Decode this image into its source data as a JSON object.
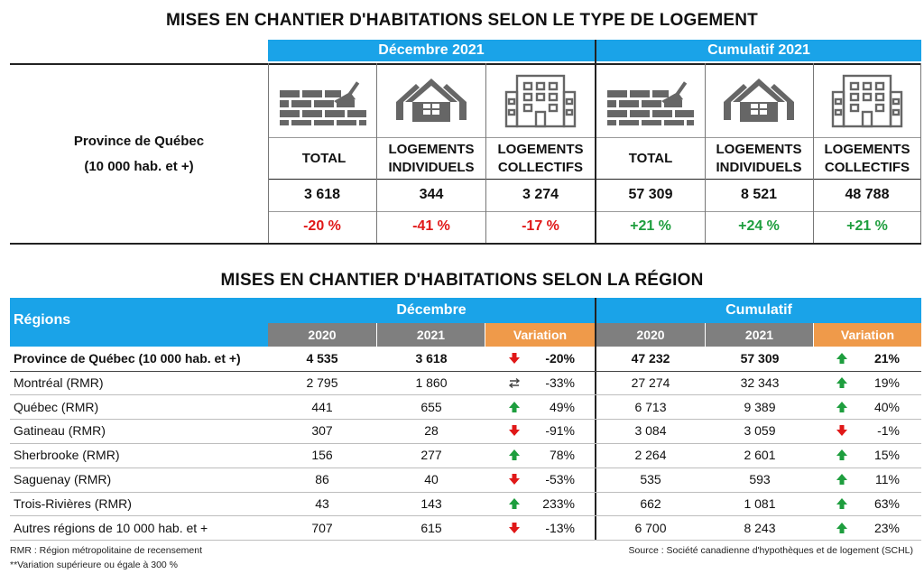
{
  "title_type": "MISES EN CHANTIER D'HABITATIONS SELON LE TYPE DE LOGEMENT",
  "title_region": "MISES EN CHANTIER D'HABITATIONS SELON LA RÉGION",
  "type_table": {
    "province_line1": "Province de Québec",
    "province_line2": "(10 000 hab. et +)",
    "period1": "Décembre 2021",
    "period2": "Cumulatif 2021",
    "headers": {
      "total": "TOTAL",
      "indiv_1": "LOGEMENTS",
      "indiv_2": "INDIVIDUELS",
      "coll_1": "LOGEMENTS",
      "coll_2": "COLLECTIFS"
    },
    "icons": [
      "brick-wall-trowel-icon",
      "house-icon",
      "apartment-building-icon",
      "brick-wall-trowel-icon",
      "house-icon",
      "apartment-building-icon"
    ],
    "values": [
      "3 618",
      "344",
      "3 274",
      "57 309",
      "8 521",
      "48 788"
    ],
    "variations": [
      "-20 %",
      "-41 %",
      "-17 %",
      "+21 %",
      "+24 %",
      "+21 %"
    ]
  },
  "region_table": {
    "col_regions": "Régions",
    "group1": "Décembre",
    "group2": "Cumulatif",
    "sub": [
      "2020",
      "2021",
      "Variation",
      "2020",
      "2021",
      "Variation"
    ],
    "rows": [
      {
        "name": "Province de Québec (10 000 hab. et +)",
        "d2020": "4 535",
        "d2021": "3 618",
        "dvar": "-20%",
        "darrow": "down",
        "c2020": "47 232",
        "c2021": "57 309",
        "cvar": "21%",
        "carrow": "up"
      },
      {
        "name": "Montréal (RMR)",
        "d2020": "2 795",
        "d2021": "1 860",
        "dvar": "-33%",
        "darrow": "swap",
        "c2020": "27 274",
        "c2021": "32 343",
        "cvar": "19%",
        "carrow": "up"
      },
      {
        "name": "Québec (RMR)",
        "d2020": "441",
        "d2021": "655",
        "dvar": "49%",
        "darrow": "up",
        "c2020": "6 713",
        "c2021": "9 389",
        "cvar": "40%",
        "carrow": "up"
      },
      {
        "name": "Gatineau (RMR)",
        "d2020": "307",
        "d2021": "28",
        "dvar": "-91%",
        "darrow": "down",
        "c2020": "3 084",
        "c2021": "3 059",
        "cvar": "-1%",
        "carrow": "down"
      },
      {
        "name": "Sherbrooke (RMR)",
        "d2020": "156",
        "d2021": "277",
        "dvar": "78%",
        "darrow": "up",
        "c2020": "2 264",
        "c2021": "2 601",
        "cvar": "15%",
        "carrow": "up"
      },
      {
        "name": "Saguenay (RMR)",
        "d2020": "86",
        "d2021": "40",
        "dvar": "-53%",
        "darrow": "down",
        "c2020": "535",
        "c2021": "593",
        "cvar": "11%",
        "carrow": "up"
      },
      {
        "name": "Trois-Rivières (RMR)",
        "d2020": "43",
        "d2021": "143",
        "dvar": "233%",
        "darrow": "up",
        "c2020": "662",
        "c2021": "1 081",
        "cvar": "63%",
        "carrow": "up"
      },
      {
        "name": "Autres régions de 10 000  hab. et +",
        "d2020": "707",
        "d2021": "615",
        "dvar": "-13%",
        "darrow": "down",
        "c2020": "6 700",
        "c2021": "8 243",
        "cvar": "23%",
        "carrow": "up"
      }
    ]
  },
  "footnotes": {
    "rmr": "RMR : Région métropolitaine de recensement",
    "variation": "**Variation supérieure ou égale à 300 %",
    "source": "Source : Société canadienne d'hypothèques et de logement (SCHL)"
  },
  "colors": {
    "header_blue": "#1aa3e8",
    "sub_gray": "#7f7f7f",
    "variation_orange": "#ef9a4a",
    "negative": "#e01818",
    "positive": "#1e9e3e"
  }
}
